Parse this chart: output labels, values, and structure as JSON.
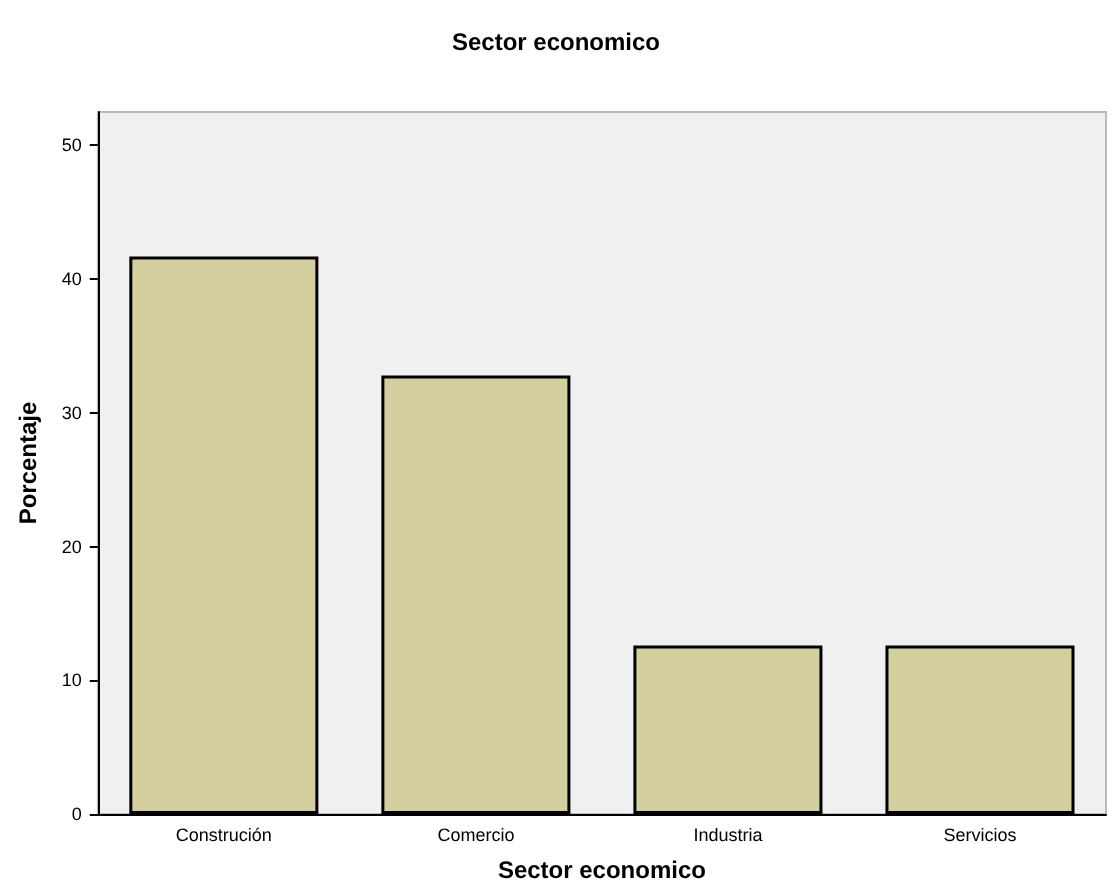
{
  "chart_data": {
    "type": "bar",
    "title": "Sector economico",
    "xlabel": "Sector economico",
    "ylabel": "Porcentaje",
    "categories": [
      "Construción",
      "Comercio",
      "Industria",
      "Servicios"
    ],
    "values": [
      41.7,
      32.8,
      12.6,
      12.6
    ],
    "color": "#d4cf9f",
    "ylim": [
      0,
      52.5
    ],
    "yticks": [
      0,
      10,
      20,
      30,
      40,
      50
    ],
    "grid": false
  }
}
